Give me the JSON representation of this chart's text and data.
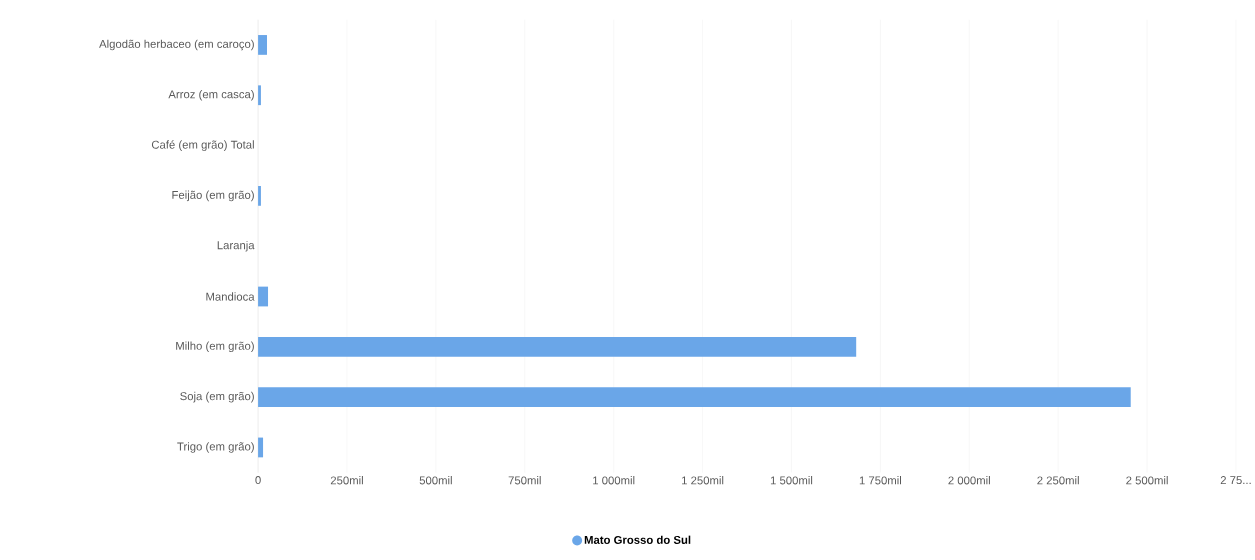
{
  "chart_data": {
    "type": "bar",
    "orientation": "horizontal",
    "categories": [
      "Algodão herbaceo (em caroço)",
      "Arroz (em casca)",
      "Café (em grão) Total",
      "Feijão (em grão)",
      "Laranja",
      "Mandioca",
      "Milho (em grão)",
      "Soja (em grão)",
      "Trigo (em grão)"
    ],
    "series": [
      {
        "name": "Mato Grosso do Sul",
        "color": "#6aa6e8",
        "values": [
          25,
          8,
          0,
          8,
          0,
          28,
          1682,
          2454,
          14
        ]
      }
    ],
    "xlim": [
      0,
      2750
    ],
    "xticks": [
      0,
      {
        "value": 250,
        "label": "250mil"
      },
      {
        "value": 500,
        "label": "500mil"
      },
      {
        "value": 750,
        "label": "750mil"
      },
      {
        "value": 1000,
        "label": "1 000mil"
      },
      {
        "value": 1250,
        "label": "1 250mil"
      },
      {
        "value": 1500,
        "label": "1 500mil"
      },
      {
        "value": 1750,
        "label": "1 750mil"
      },
      {
        "value": 2000,
        "label": "2 000mil"
      },
      {
        "value": 2250,
        "label": "2 250mil"
      },
      {
        "value": 2500,
        "label": "2 500mil"
      },
      {
        "value": 2750,
        "label": "2 75..."
      }
    ],
    "grid": "x",
    "legend": "bottom"
  }
}
